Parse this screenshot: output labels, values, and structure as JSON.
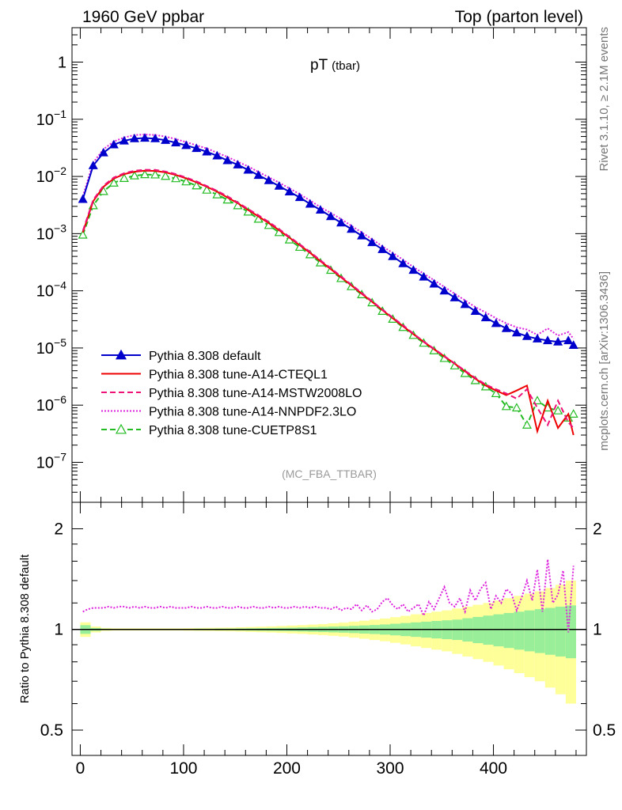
{
  "header": {
    "left": "1960 GeV ppbar",
    "right": "Top (parton level)"
  },
  "side": {
    "rivet": "Rivet 3.1.10, ≥ 2.1M events",
    "mcplots": "mcplots.cern.ch [arXiv:1306.3436]"
  },
  "chart_data": [
    {
      "type": "line",
      "title": "pT",
      "title_sub": "(tbar)",
      "watermark": "(MC_FBA_TTBAR)",
      "xlabel": "",
      "ylabel": "",
      "yscale": "log",
      "xlim": [
        -8,
        490
      ],
      "ylim": [
        2e-08,
        4
      ],
      "xticks": [
        0,
        100,
        200,
        300,
        400
      ],
      "yticks": [
        {
          "value": 1,
          "label": "1"
        },
        {
          "value": 0.1,
          "label": "10",
          "exp": "−1"
        },
        {
          "value": 0.01,
          "label": "10",
          "exp": "−2"
        },
        {
          "value": 0.001,
          "label": "10",
          "exp": "−3"
        },
        {
          "value": 0.0001,
          "label": "10",
          "exp": "−4"
        },
        {
          "value": 1e-05,
          "label": "10",
          "exp": "−5"
        },
        {
          "value": 1e-06,
          "label": "10",
          "exp": "−6"
        },
        {
          "value": 1e-07,
          "label": "10",
          "exp": "−7"
        }
      ],
      "series": [
        {
          "name": "Pythia 8.308 default",
          "color": "#0000cc",
          "style": "solid",
          "marker": "triangle-filled",
          "x": [
            2.5,
            12.5,
            22.5,
            32.5,
            42.5,
            52.5,
            62.5,
            72.5,
            82.5,
            92.5,
            102.5,
            112.5,
            122.5,
            132.5,
            142.5,
            152.5,
            162.5,
            172.5,
            182.5,
            192.5,
            202.5,
            212.5,
            222.5,
            232.5,
            242.5,
            252.5,
            262.5,
            272.5,
            282.5,
            292.5,
            302.5,
            312.5,
            322.5,
            332.5,
            342.5,
            352.5,
            362.5,
            372.5,
            382.5,
            392.5,
            402.5,
            412.5,
            422.5,
            432.5,
            442.5,
            452.5,
            462.5,
            472.5,
            477.5
          ],
          "values": [
            0.004,
            0.0155,
            0.026,
            0.036,
            0.042,
            0.046,
            0.047,
            0.046,
            0.043,
            0.039,
            0.035,
            0.031,
            0.027,
            0.023,
            0.019,
            0.016,
            0.013,
            0.0105,
            0.0085,
            0.0068,
            0.0054,
            0.0043,
            0.0033,
            0.0026,
            0.002,
            0.00155,
            0.0012,
            0.00092,
            0.0007,
            0.00053,
            0.0004,
            0.0003,
            0.00023,
            0.000175,
            0.000132,
            0.0001,
            7.6e-05,
            5.8e-05,
            4.4e-05,
            3.4e-05,
            2.7e-05,
            2.2e-05,
            1.85e-05,
            1.6e-05,
            1.45e-05,
            1.35e-05,
            1.28e-05,
            1.35e-05,
            1.12e-05
          ]
        },
        {
          "name": "Pythia 8.308 tune-A14-CTEQL1",
          "color": "#ee0000",
          "style": "solid",
          "marker": "none",
          "x": [
            2.5,
            12.5,
            22.5,
            32.5,
            42.5,
            52.5,
            62.5,
            72.5,
            82.5,
            92.5,
            102.5,
            112.5,
            122.5,
            132.5,
            142.5,
            152.5,
            162.5,
            172.5,
            182.5,
            192.5,
            202.5,
            212.5,
            222.5,
            232.5,
            242.5,
            252.5,
            262.5,
            272.5,
            282.5,
            292.5,
            302.5,
            312.5,
            322.5,
            332.5,
            342.5,
            352.5,
            362.5,
            372.5,
            382.5,
            392.5,
            402.5,
            412.5,
            422.5,
            432.5,
            442.5,
            452.5,
            462.5,
            472.5,
            477.5
          ],
          "values": [
            0.00105,
            0.0037,
            0.0066,
            0.0092,
            0.011,
            0.0121,
            0.0126,
            0.0125,
            0.0118,
            0.0106,
            0.0093,
            0.0079,
            0.0066,
            0.0054,
            0.0043,
            0.0034,
            0.0026,
            0.002,
            0.00153,
            0.00115,
            0.00085,
            0.00063,
            0.00046,
            0.00033,
            0.00024,
            0.000172,
            0.000124,
            8.9e-05,
            6.4e-05,
            4.6e-05,
            3.3e-05,
            2.4e-05,
            1.75e-05,
            1.28e-05,
            9.5e-06,
            7.1e-06,
            5.3e-06,
            3.9e-06,
            2.9e-06,
            2.2e-06,
            1.8e-06,
            1.5e-06,
            1.8e-06,
            2.2e-06,
            3.5e-07,
            1.2e-06,
            4e-07,
            7e-07,
            3e-07
          ]
        },
        {
          "name": "Pythia 8.308 tune-A14-MSTW2008LO",
          "color": "#ee1177",
          "style": "dashed",
          "marker": "none",
          "x": [
            2.5,
            12.5,
            22.5,
            32.5,
            42.5,
            52.5,
            62.5,
            72.5,
            82.5,
            92.5,
            102.5,
            112.5,
            122.5,
            132.5,
            142.5,
            152.5,
            162.5,
            172.5,
            182.5,
            192.5,
            202.5,
            212.5,
            222.5,
            232.5,
            242.5,
            252.5,
            262.5,
            272.5,
            282.5,
            292.5,
            302.5,
            312.5,
            322.5,
            332.5,
            342.5,
            352.5,
            362.5,
            372.5,
            382.5,
            392.5,
            402.5,
            412.5,
            422.5,
            432.5,
            442.5,
            452.5,
            462.5,
            472.5,
            477.5
          ],
          "values": [
            0.00112,
            0.0039,
            0.0069,
            0.0096,
            0.0114,
            0.0126,
            0.0131,
            0.013,
            0.0122,
            0.011,
            0.0096,
            0.0082,
            0.0068,
            0.0056,
            0.0045,
            0.0035,
            0.0027,
            0.0021,
            0.0016,
            0.0012,
            0.00088,
            0.00065,
            0.00048,
            0.00034,
            0.00025,
            0.000178,
            0.000128,
            9.2e-05,
            6.6e-05,
            4.7e-05,
            3.4e-05,
            2.5e-05,
            1.78e-05,
            1.3e-05,
            9.7e-06,
            7.2e-06,
            5.4e-06,
            4e-06,
            3e-06,
            2.3e-06,
            1.9e-06,
            1.6e-06,
            1.3e-06,
            1.9e-06,
            9e-07,
            4.5e-07,
            1.2e-06,
            5e-07,
            4e-07
          ]
        },
        {
          "name": "Pythia 8.308 tune-A14-NNPDF2.3LO",
          "color": "#dd22dd",
          "style": "dotted",
          "marker": "none",
          "x": [
            2.5,
            12.5,
            22.5,
            32.5,
            42.5,
            52.5,
            62.5,
            72.5,
            82.5,
            92.5,
            102.5,
            112.5,
            122.5,
            132.5,
            142.5,
            152.5,
            162.5,
            172.5,
            182.5,
            192.5,
            202.5,
            212.5,
            222.5,
            232.5,
            242.5,
            252.5,
            262.5,
            272.5,
            282.5,
            292.5,
            302.5,
            312.5,
            322.5,
            332.5,
            342.5,
            352.5,
            362.5,
            372.5,
            382.5,
            392.5,
            402.5,
            412.5,
            422.5,
            432.5,
            442.5,
            452.5,
            462.5,
            472.5,
            477.5
          ],
          "values": [
            0.0045,
            0.0175,
            0.03,
            0.041,
            0.048,
            0.053,
            0.054,
            0.053,
            0.05,
            0.045,
            0.04,
            0.035,
            0.031,
            0.026,
            0.022,
            0.018,
            0.015,
            0.012,
            0.0097,
            0.0078,
            0.0062,
            0.0049,
            0.0038,
            0.0029,
            0.0023,
            0.0018,
            0.00137,
            0.00105,
            0.0008,
            0.0006,
            0.00046,
            0.00035,
            0.00026,
            0.0002,
            0.000153,
            0.000117,
            8.9e-05,
            6.8e-05,
            5.2e-05,
            4.2e-05,
            3.3e-05,
            2.7e-05,
            2.3e-05,
            2.1e-05,
            1.7e-05,
            2.2e-05,
            1.65e-05,
            1.9e-05,
            1.45e-05
          ]
        },
        {
          "name": "Pythia 8.308 tune-CUETP8S1",
          "color": "#22bb22",
          "style": "dashed",
          "marker": "triangle-open",
          "x": [
            2.5,
            12.5,
            22.5,
            32.5,
            42.5,
            52.5,
            62.5,
            72.5,
            82.5,
            92.5,
            102.5,
            112.5,
            122.5,
            132.5,
            142.5,
            152.5,
            162.5,
            172.5,
            182.5,
            192.5,
            202.5,
            212.5,
            222.5,
            232.5,
            242.5,
            252.5,
            262.5,
            272.5,
            282.5,
            292.5,
            302.5,
            312.5,
            322.5,
            332.5,
            342.5,
            352.5,
            362.5,
            372.5,
            382.5,
            392.5,
            402.5,
            412.5,
            422.5,
            432.5,
            442.5,
            452.5,
            462.5,
            472.5,
            477.5
          ],
          "values": [
            0.00095,
            0.0031,
            0.0055,
            0.0077,
            0.0093,
            0.0103,
            0.0108,
            0.0107,
            0.0101,
            0.0092,
            0.0081,
            0.0069,
            0.0058,
            0.0048,
            0.0039,
            0.0031,
            0.0024,
            0.0018,
            0.0014,
            0.00105,
            0.00078,
            0.00058,
            0.00043,
            0.00031,
            0.00023,
            0.000165,
            0.000119,
            8.6e-05,
            6.2e-05,
            4.4e-05,
            3.2e-05,
            2.3e-05,
            1.67e-05,
            1.22e-05,
            9e-06,
            6.6e-06,
            4.9e-06,
            3.6e-06,
            2.7e-06,
            2.1e-06,
            1.6e-06,
            9.5e-07,
            9e-07,
            4.5e-07,
            1.2e-06,
            9e-07,
            8e-07,
            6e-07,
            7e-07
          ]
        }
      ]
    },
    {
      "type": "line",
      "title": "",
      "xlabel": "",
      "ylabel": "Ratio to Pythia 8.308 default",
      "yscale": "log",
      "xlim": [
        -8,
        490
      ],
      "ylim": [
        0.42,
        2.4
      ],
      "xticks": [
        0,
        100,
        200,
        300,
        400
      ],
      "yticks": [
        {
          "value": 0.5,
          "label": "0.5"
        },
        {
          "value": 1,
          "label": "1"
        },
        {
          "value": 2,
          "label": "2"
        }
      ],
      "reference": 1,
      "band_edges": [
        0,
        10,
        20,
        30,
        40,
        50,
        60,
        70,
        80,
        90,
        100,
        110,
        120,
        130,
        140,
        150,
        160,
        170,
        180,
        190,
        200,
        210,
        220,
        230,
        240,
        250,
        260,
        270,
        280,
        290,
        300,
        310,
        320,
        330,
        340,
        350,
        360,
        370,
        380,
        390,
        400,
        410,
        420,
        430,
        440,
        450,
        460,
        470,
        480
      ],
      "band_inner_halfwidth": [
        0.03,
        0.01,
        0.005,
        0.004,
        0.004,
        0.004,
        0.004,
        0.004,
        0.004,
        0.004,
        0.004,
        0.005,
        0.005,
        0.006,
        0.006,
        0.007,
        0.008,
        0.009,
        0.01,
        0.011,
        0.012,
        0.014,
        0.016,
        0.018,
        0.02,
        0.022,
        0.025,
        0.028,
        0.031,
        0.035,
        0.04,
        0.045,
        0.05,
        0.055,
        0.06,
        0.065,
        0.07,
        0.08,
        0.09,
        0.1,
        0.11,
        0.12,
        0.13,
        0.14,
        0.15,
        0.16,
        0.17,
        0.18,
        0.2
      ],
      "band_outer_halfwidth": [
        0.05,
        0.02,
        0.01,
        0.008,
        0.008,
        0.008,
        0.008,
        0.008,
        0.008,
        0.008,
        0.009,
        0.01,
        0.011,
        0.012,
        0.013,
        0.015,
        0.017,
        0.019,
        0.021,
        0.024,
        0.027,
        0.03,
        0.034,
        0.038,
        0.043,
        0.048,
        0.055,
        0.062,
        0.07,
        0.078,
        0.088,
        0.098,
        0.11,
        0.12,
        0.13,
        0.14,
        0.155,
        0.17,
        0.185,
        0.2,
        0.22,
        0.24,
        0.26,
        0.28,
        0.3,
        0.33,
        0.36,
        0.4,
        0.45
      ],
      "series": [
        {
          "name": "Pythia 8.308 tune-A14-NNPDF2.3LO / default",
          "color": "#dd22dd",
          "style": "dotted",
          "x": [
            2.5,
            7.5,
            12.5,
            17.5,
            22.5,
            27.5,
            32.5,
            37.5,
            42.5,
            47.5,
            52.5,
            57.5,
            62.5,
            67.5,
            72.5,
            77.5,
            82.5,
            87.5,
            92.5,
            97.5,
            102.5,
            107.5,
            112.5,
            117.5,
            122.5,
            127.5,
            132.5,
            137.5,
            142.5,
            147.5,
            152.5,
            157.5,
            162.5,
            167.5,
            172.5,
            177.5,
            182.5,
            187.5,
            192.5,
            197.5,
            202.5,
            207.5,
            212.5,
            217.5,
            222.5,
            227.5,
            232.5,
            237.5,
            242.5,
            247.5,
            252.5,
            257.5,
            262.5,
            267.5,
            272.5,
            277.5,
            282.5,
            287.5,
            292.5,
            297.5,
            302.5,
            307.5,
            312.5,
            317.5,
            322.5,
            327.5,
            332.5,
            337.5,
            342.5,
            347.5,
            352.5,
            357.5,
            362.5,
            367.5,
            372.5,
            377.5,
            382.5,
            387.5,
            392.5,
            397.5,
            402.5,
            407.5,
            412.5,
            417.5,
            422.5,
            427.5,
            432.5,
            437.5,
            442.5,
            447.5,
            452.5,
            457.5,
            462.5,
            467.5,
            472.5,
            477.5
          ],
          "values": [
            1.13,
            1.15,
            1.16,
            1.16,
            1.16,
            1.17,
            1.16,
            1.17,
            1.17,
            1.16,
            1.17,
            1.16,
            1.17,
            1.16,
            1.16,
            1.17,
            1.16,
            1.17,
            1.16,
            1.16,
            1.16,
            1.17,
            1.16,
            1.16,
            1.17,
            1.16,
            1.16,
            1.17,
            1.16,
            1.16,
            1.17,
            1.16,
            1.16,
            1.17,
            1.16,
            1.16,
            1.17,
            1.16,
            1.17,
            1.16,
            1.16,
            1.17,
            1.16,
            1.17,
            1.16,
            1.17,
            1.16,
            1.16,
            1.15,
            1.17,
            1.14,
            1.16,
            1.15,
            1.19,
            1.14,
            1.18,
            1.13,
            1.15,
            1.21,
            1.24,
            1.18,
            1.15,
            1.19,
            1.13,
            1.16,
            1.19,
            1.1,
            1.21,
            1.15,
            1.24,
            1.34,
            1.2,
            1.17,
            1.24,
            1.13,
            1.31,
            1.22,
            1.32,
            1.38,
            1.15,
            1.26,
            1.2,
            1.32,
            1.28,
            1.14,
            1.25,
            1.4,
            1.22,
            1.51,
            1.13,
            1.62,
            1.2,
            1.27,
            1.5,
            0.98,
            1.55
          ]
        }
      ]
    }
  ],
  "legend": [
    {
      "label": "Pythia 8.308 default"
    },
    {
      "label": "Pythia 8.308 tune-A14-CTEQL1"
    },
    {
      "label": "Pythia 8.308 tune-A14-MSTW2008LO"
    },
    {
      "label": "Pythia 8.308 tune-A14-NNPDF2.3LO"
    },
    {
      "label": "Pythia 8.308 tune-CUETP8S1"
    }
  ],
  "colors": {
    "band_inner": "#99ee99",
    "band_outer": "#ffff99",
    "frame": "#000000"
  }
}
